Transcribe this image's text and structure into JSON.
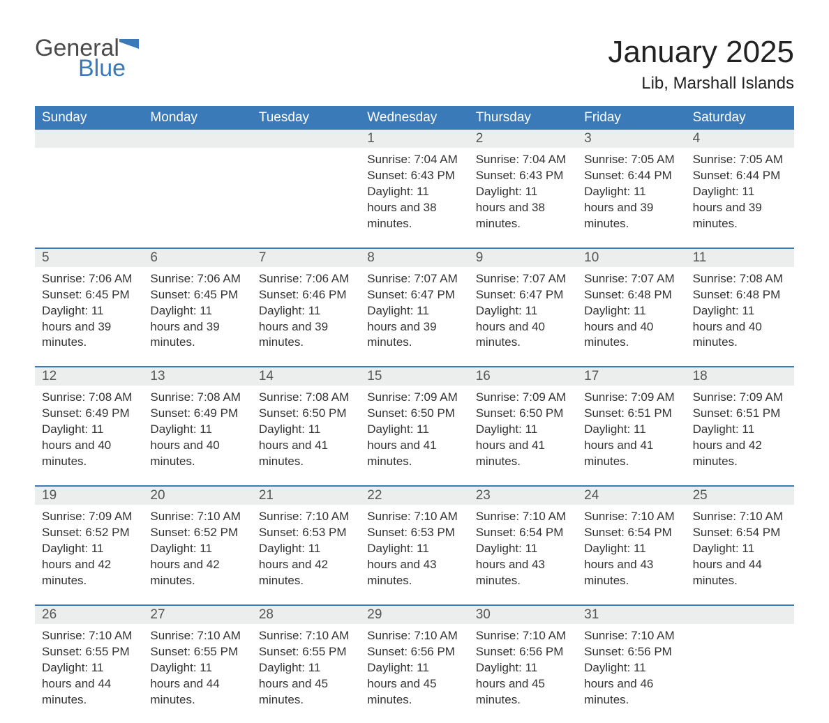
{
  "logo": {
    "text1": "General",
    "text2": "Blue",
    "flag_color": "#3a7ab8"
  },
  "title": "January 2025",
  "location": "Lib, Marshall Islands",
  "colors": {
    "header_bg": "#3a7ab8",
    "header_text": "#ffffff",
    "daynum_bg": "#eceded",
    "body_text": "#333333",
    "rule": "#3a7ab8"
  },
  "day_headers": [
    "Sunday",
    "Monday",
    "Tuesday",
    "Wednesday",
    "Thursday",
    "Friday",
    "Saturday"
  ],
  "weeks": [
    [
      {
        "day": "",
        "sunrise": "",
        "sunset": "",
        "daylight": ""
      },
      {
        "day": "",
        "sunrise": "",
        "sunset": "",
        "daylight": ""
      },
      {
        "day": "",
        "sunrise": "",
        "sunset": "",
        "daylight": ""
      },
      {
        "day": "1",
        "sunrise": "Sunrise: 7:04 AM",
        "sunset": "Sunset: 6:43 PM",
        "daylight": "Daylight: 11 hours and 38 minutes."
      },
      {
        "day": "2",
        "sunrise": "Sunrise: 7:04 AM",
        "sunset": "Sunset: 6:43 PM",
        "daylight": "Daylight: 11 hours and 38 minutes."
      },
      {
        "day": "3",
        "sunrise": "Sunrise: 7:05 AM",
        "sunset": "Sunset: 6:44 PM",
        "daylight": "Daylight: 11 hours and 39 minutes."
      },
      {
        "day": "4",
        "sunrise": "Sunrise: 7:05 AM",
        "sunset": "Sunset: 6:44 PM",
        "daylight": "Daylight: 11 hours and 39 minutes."
      }
    ],
    [
      {
        "day": "5",
        "sunrise": "Sunrise: 7:06 AM",
        "sunset": "Sunset: 6:45 PM",
        "daylight": "Daylight: 11 hours and 39 minutes."
      },
      {
        "day": "6",
        "sunrise": "Sunrise: 7:06 AM",
        "sunset": "Sunset: 6:45 PM",
        "daylight": "Daylight: 11 hours and 39 minutes."
      },
      {
        "day": "7",
        "sunrise": "Sunrise: 7:06 AM",
        "sunset": "Sunset: 6:46 PM",
        "daylight": "Daylight: 11 hours and 39 minutes."
      },
      {
        "day": "8",
        "sunrise": "Sunrise: 7:07 AM",
        "sunset": "Sunset: 6:47 PM",
        "daylight": "Daylight: 11 hours and 39 minutes."
      },
      {
        "day": "9",
        "sunrise": "Sunrise: 7:07 AM",
        "sunset": "Sunset: 6:47 PM",
        "daylight": "Daylight: 11 hours and 40 minutes."
      },
      {
        "day": "10",
        "sunrise": "Sunrise: 7:07 AM",
        "sunset": "Sunset: 6:48 PM",
        "daylight": "Daylight: 11 hours and 40 minutes."
      },
      {
        "day": "11",
        "sunrise": "Sunrise: 7:08 AM",
        "sunset": "Sunset: 6:48 PM",
        "daylight": "Daylight: 11 hours and 40 minutes."
      }
    ],
    [
      {
        "day": "12",
        "sunrise": "Sunrise: 7:08 AM",
        "sunset": "Sunset: 6:49 PM",
        "daylight": "Daylight: 11 hours and 40 minutes."
      },
      {
        "day": "13",
        "sunrise": "Sunrise: 7:08 AM",
        "sunset": "Sunset: 6:49 PM",
        "daylight": "Daylight: 11 hours and 40 minutes."
      },
      {
        "day": "14",
        "sunrise": "Sunrise: 7:08 AM",
        "sunset": "Sunset: 6:50 PM",
        "daylight": "Daylight: 11 hours and 41 minutes."
      },
      {
        "day": "15",
        "sunrise": "Sunrise: 7:09 AM",
        "sunset": "Sunset: 6:50 PM",
        "daylight": "Daylight: 11 hours and 41 minutes."
      },
      {
        "day": "16",
        "sunrise": "Sunrise: 7:09 AM",
        "sunset": "Sunset: 6:50 PM",
        "daylight": "Daylight: 11 hours and 41 minutes."
      },
      {
        "day": "17",
        "sunrise": "Sunrise: 7:09 AM",
        "sunset": "Sunset: 6:51 PM",
        "daylight": "Daylight: 11 hours and 41 minutes."
      },
      {
        "day": "18",
        "sunrise": "Sunrise: 7:09 AM",
        "sunset": "Sunset: 6:51 PM",
        "daylight": "Daylight: 11 hours and 42 minutes."
      }
    ],
    [
      {
        "day": "19",
        "sunrise": "Sunrise: 7:09 AM",
        "sunset": "Sunset: 6:52 PM",
        "daylight": "Daylight: 11 hours and 42 minutes."
      },
      {
        "day": "20",
        "sunrise": "Sunrise: 7:10 AM",
        "sunset": "Sunset: 6:52 PM",
        "daylight": "Daylight: 11 hours and 42 minutes."
      },
      {
        "day": "21",
        "sunrise": "Sunrise: 7:10 AM",
        "sunset": "Sunset: 6:53 PM",
        "daylight": "Daylight: 11 hours and 42 minutes."
      },
      {
        "day": "22",
        "sunrise": "Sunrise: 7:10 AM",
        "sunset": "Sunset: 6:53 PM",
        "daylight": "Daylight: 11 hours and 43 minutes."
      },
      {
        "day": "23",
        "sunrise": "Sunrise: 7:10 AM",
        "sunset": "Sunset: 6:54 PM",
        "daylight": "Daylight: 11 hours and 43 minutes."
      },
      {
        "day": "24",
        "sunrise": "Sunrise: 7:10 AM",
        "sunset": "Sunset: 6:54 PM",
        "daylight": "Daylight: 11 hours and 43 minutes."
      },
      {
        "day": "25",
        "sunrise": "Sunrise: 7:10 AM",
        "sunset": "Sunset: 6:54 PM",
        "daylight": "Daylight: 11 hours and 44 minutes."
      }
    ],
    [
      {
        "day": "26",
        "sunrise": "Sunrise: 7:10 AM",
        "sunset": "Sunset: 6:55 PM",
        "daylight": "Daylight: 11 hours and 44 minutes."
      },
      {
        "day": "27",
        "sunrise": "Sunrise: 7:10 AM",
        "sunset": "Sunset: 6:55 PM",
        "daylight": "Daylight: 11 hours and 44 minutes."
      },
      {
        "day": "28",
        "sunrise": "Sunrise: 7:10 AM",
        "sunset": "Sunset: 6:55 PM",
        "daylight": "Daylight: 11 hours and 45 minutes."
      },
      {
        "day": "29",
        "sunrise": "Sunrise: 7:10 AM",
        "sunset": "Sunset: 6:56 PM",
        "daylight": "Daylight: 11 hours and 45 minutes."
      },
      {
        "day": "30",
        "sunrise": "Sunrise: 7:10 AM",
        "sunset": "Sunset: 6:56 PM",
        "daylight": "Daylight: 11 hours and 45 minutes."
      },
      {
        "day": "31",
        "sunrise": "Sunrise: 7:10 AM",
        "sunset": "Sunset: 6:56 PM",
        "daylight": "Daylight: 11 hours and 46 minutes."
      },
      {
        "day": "",
        "sunrise": "",
        "sunset": "",
        "daylight": ""
      }
    ]
  ]
}
